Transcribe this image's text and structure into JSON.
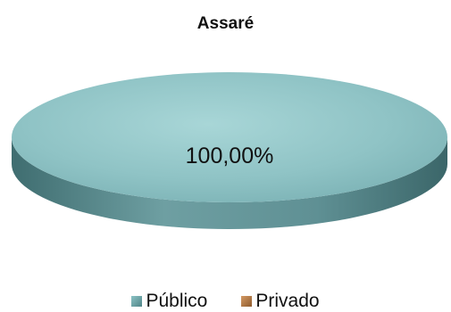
{
  "chart_data": {
    "type": "pie",
    "title": "Assaré",
    "categories": [
      "Público",
      "Privado"
    ],
    "values": [
      100.0,
      0.0
    ],
    "data_labels": [
      "100,00%"
    ],
    "colors": [
      "#8cc3c5",
      "#d49a64"
    ],
    "legend_position": "bottom"
  }
}
